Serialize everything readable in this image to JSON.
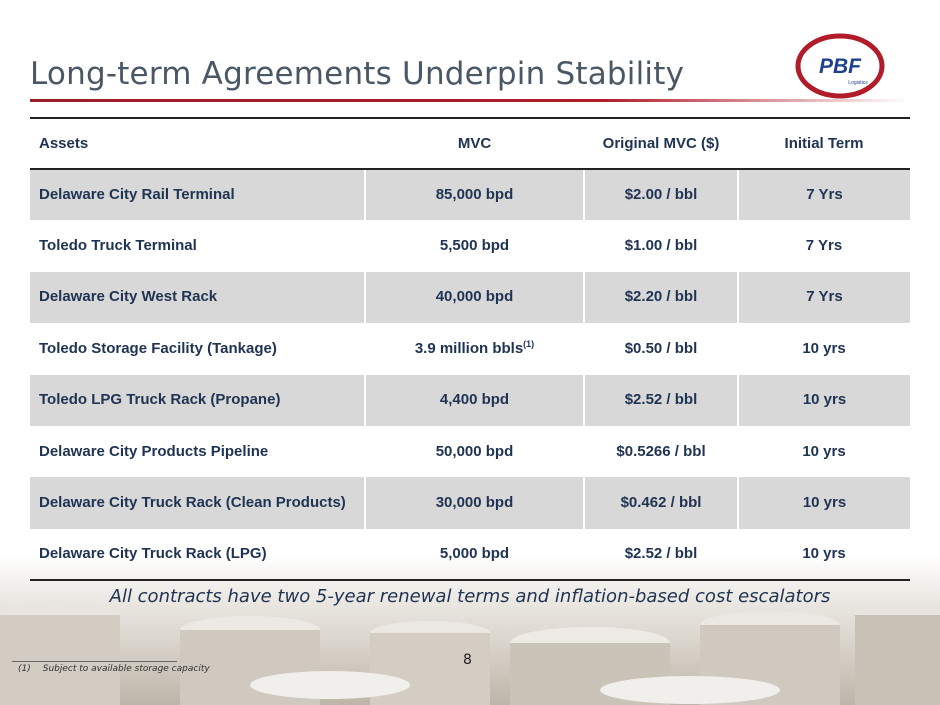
{
  "slide": {
    "title": "Long-term Agreements Underpin Stability",
    "logo_text": "PBF",
    "logo_subtext": "Logistics",
    "page_number": "8"
  },
  "table": {
    "headers": [
      "Assets",
      "MVC",
      "Original MVC ($)",
      "Initial Term"
    ],
    "rows": [
      {
        "asset": "Delaware City Rail Terminal",
        "mvc": "85,000 bpd",
        "mvc_sup": "",
        "original_mvc": "$2.00 / bbl",
        "term": "7 Yrs"
      },
      {
        "asset": "Toledo Truck Terminal",
        "mvc": "5,500 bpd",
        "mvc_sup": "",
        "original_mvc": "$1.00 / bbl",
        "term": "7 Yrs"
      },
      {
        "asset": "Delaware City West Rack",
        "mvc": "40,000 bpd",
        "mvc_sup": "",
        "original_mvc": "$2.20 / bbl",
        "term": "7 Yrs"
      },
      {
        "asset": "Toledo Storage Facility (Tankage)",
        "mvc": "3.9 million bbls",
        "mvc_sup": "(1)",
        "original_mvc": "$0.50 / bbl",
        "term": "10 yrs"
      },
      {
        "asset": "Toledo LPG Truck Rack (Propane)",
        "mvc": "4,400 bpd",
        "mvc_sup": "",
        "original_mvc": "$2.52 / bbl",
        "term": "10 yrs"
      },
      {
        "asset": "Delaware City Products Pipeline",
        "mvc": "50,000 bpd",
        "mvc_sup": "",
        "original_mvc": "$0.5266 / bbl",
        "term": "10 yrs"
      },
      {
        "asset": "Delaware City Truck Rack (Clean Products)",
        "mvc": "30,000 bpd",
        "mvc_sup": "",
        "original_mvc": "$0.462 / bbl",
        "term": "10 yrs"
      },
      {
        "asset": "Delaware City Truck Rack (LPG)",
        "mvc": "5,000 bpd",
        "mvc_sup": "",
        "original_mvc": "$2.52 / bbl",
        "term": "10 yrs"
      }
    ]
  },
  "tagline": "All contracts have two 5-year renewal terms and inflation-based cost escalators",
  "footnote": {
    "marker": "(1)",
    "text": "Subject to available storage capacity"
  },
  "colors": {
    "title": "#4a5866",
    "table_text": "#1f3352",
    "row_shade": "#d8d8d8",
    "accent_red": "#b01c2a",
    "logo_blue": "#1f3f8f"
  }
}
